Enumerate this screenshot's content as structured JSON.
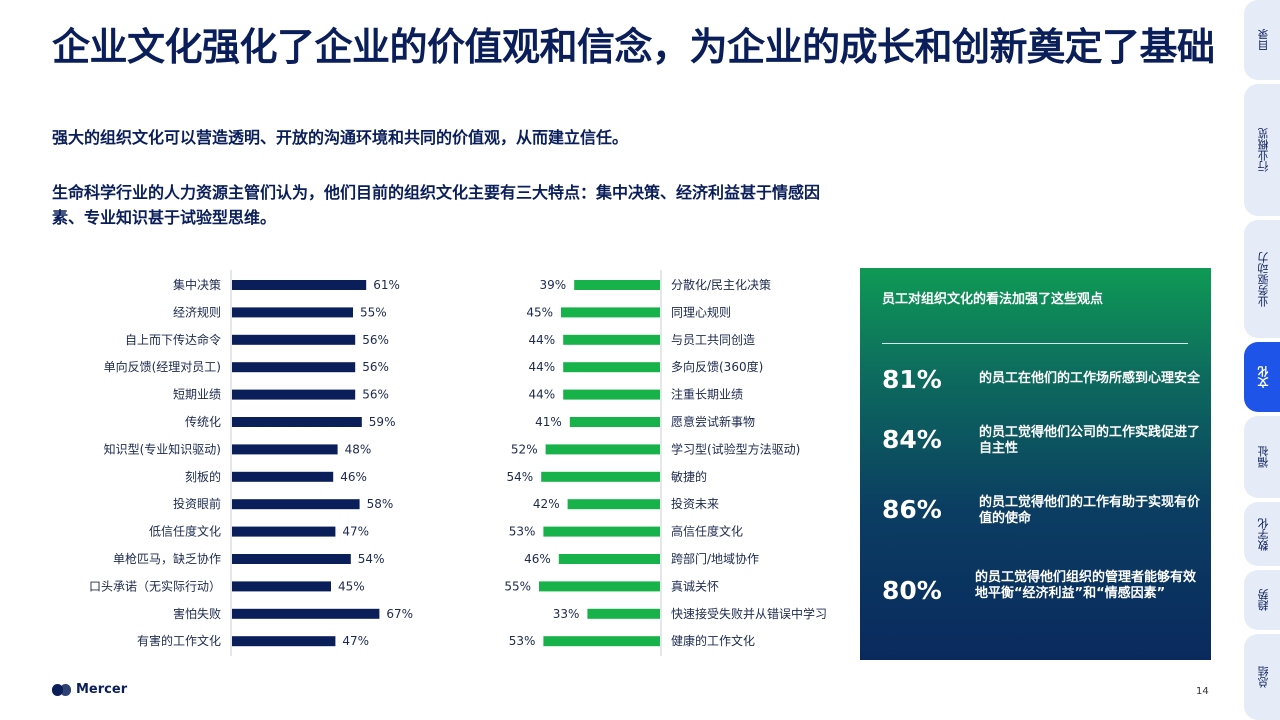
{
  "title": "企业文化强化了企业的价值观和信念，为企业的成长和创新奠定了基础",
  "subtitle": "强大的组织文化可以营造透明、开放的沟通环境和共同的价值观，从而建立信任。",
  "intro": "生命科学行业的人力资源主管们认为，他们目前的组织文化主要有三大特点：集中决策、经济利益甚于情感因素、专业知识甚于试验型思维。",
  "colors": {
    "navy": "#0a1e5a",
    "green": "#17b24a",
    "accent": "#1f54e8"
  },
  "chart_data": {
    "type": "bar",
    "unit": "%",
    "series": [
      {
        "name": "",
        "color": "#0a1e5a",
        "categories": [
          "集中决策",
          "经济规则",
          "自上而下传达命令",
          "单向反馈(经理对员工)",
          "短期业绩",
          "传统化",
          "知识型(专业知识驱动)",
          "刻板的",
          "投资眼前",
          "低信任度文化",
          "单枪匹马，缺乏协作",
          "口头承诺（无实际行动）",
          "害怕失败",
          "有害的工作文化"
        ],
        "values": [
          61,
          55,
          56,
          56,
          56,
          59,
          48,
          46,
          58,
          47,
          54,
          45,
          67,
          47
        ],
        "labels": [
          "61%",
          "55%",
          "56%",
          "56%",
          "56%",
          "59%",
          "48%",
          "46%",
          "58%",
          "47%",
          "54%",
          "45%",
          "67%",
          "47%"
        ]
      },
      {
        "name": "",
        "color": "#17b24a",
        "categories": [
          "分散化/民主化决策",
          "同理心规则",
          "与员工共同创造",
          "多向反馈(360度)",
          "注重长期业绩",
          "愿意尝试新事物",
          "学习型(试验型方法驱动)",
          "敏捷的",
          "投资未来",
          "高信任度文化",
          "跨部门/地域协作",
          "真诚关怀",
          "快速接受失败并从错误中学习",
          "健康的工作文化"
        ],
        "values": [
          39,
          45,
          44,
          44,
          44,
          41,
          52,
          54,
          42,
          53,
          46,
          55,
          33,
          53
        ],
        "labels": [
          "39%",
          "45%",
          "44%",
          "44%",
          "44%",
          "41%",
          "52%",
          "54%",
          "42%",
          "53%",
          "46%",
          "55%",
          "33%",
          "53%"
        ]
      }
    ]
  },
  "panel": {
    "title": "员工对组织文化的看法加强了这些观点",
    "stats": [
      {
        "value": "81%",
        "text": "的员工在他们的工作场所感到心理安全"
      },
      {
        "value": "84%",
        "text": "的员工觉得他们公司的工作实践促进了自主性"
      },
      {
        "value": "86%",
        "text": "的员工觉得他们的工作有助于实现有价值的使命"
      },
      {
        "value": "80%",
        "text": "的员工觉得他们组织的管理者能够有效地平衡“经济利益”和“情感因素”"
      }
    ]
  },
  "footer": {
    "logo": "Mercer",
    "page": "14"
  },
  "sidebar": {
    "tabs": [
      {
        "label": "目录",
        "active": false
      },
      {
        "label": "行业概览",
        "active": false
      },
      {
        "label": "业务驱动力",
        "active": false
      },
      {
        "label": "文化",
        "active": true
      },
      {
        "label": "福祉",
        "active": false
      },
      {
        "label": "数字化",
        "active": false
      },
      {
        "label": "趋势",
        "active": false
      },
      {
        "label": "总结",
        "active": false
      }
    ]
  }
}
